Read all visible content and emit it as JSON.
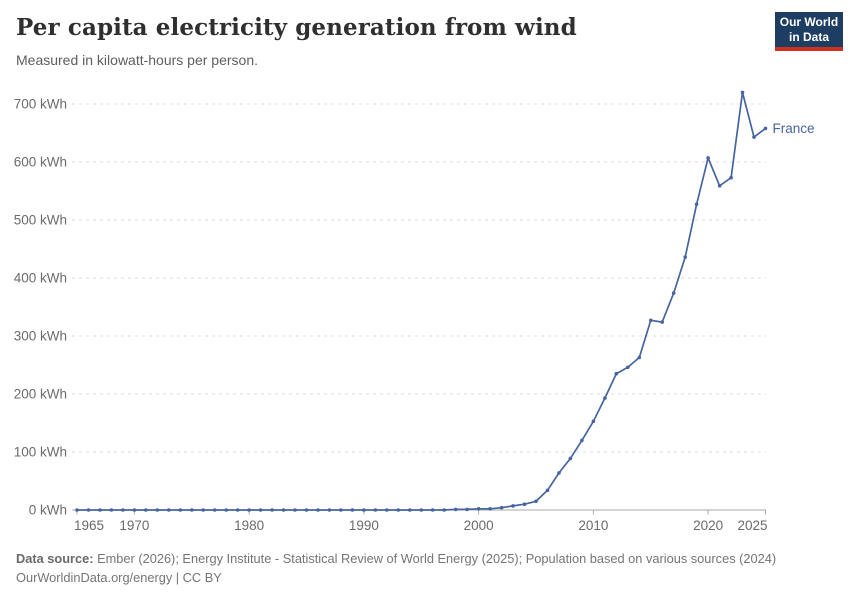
{
  "header": {
    "title": "Per capita electricity generation from wind",
    "subtitle": "Measured in kilowatt-hours per person.",
    "logo_line1": "Our World",
    "logo_line2": "in Data"
  },
  "footer": {
    "source_bold": "Data source:",
    "source_rest": " Ember (2026); Energy Institute - Statistical Review of World Energy (2025); Population based on various sources (2024)",
    "license": "OurWorldinData.org/energy | CC BY"
  },
  "colors": {
    "line": "#4664A0",
    "grid": "#dcdcdc",
    "axis": "#a8a8a8",
    "tick_label": "#6b6b6b",
    "logo_bg": "#1d3d63",
    "logo_red": "#cf3121"
  },
  "chart_data": {
    "type": "line",
    "title": "Per capita electricity generation from wind",
    "subtitle": "Measured in kilowatt-hours per person.",
    "xlabel": "",
    "ylabel": "kWh per person",
    "xlim": [
      1965,
      2025
    ],
    "ylim": [
      0,
      700
    ],
    "grid": "horizontal-dashed",
    "legend": "end-of-line-label",
    "xticks": [
      1965,
      1970,
      1980,
      1990,
      2000,
      2010,
      2020,
      2025
    ],
    "yticks": [
      0,
      100,
      200,
      300,
      400,
      500,
      600,
      700
    ],
    "ytick_suffix": " kWh",
    "x": [
      1965,
      1966,
      1967,
      1968,
      1969,
      1970,
      1971,
      1972,
      1973,
      1974,
      1975,
      1976,
      1977,
      1978,
      1979,
      1980,
      1981,
      1982,
      1983,
      1984,
      1985,
      1986,
      1987,
      1988,
      1989,
      1990,
      1991,
      1992,
      1993,
      1994,
      1995,
      1996,
      1997,
      1998,
      1999,
      2000,
      2001,
      2002,
      2003,
      2004,
      2005,
      2006,
      2007,
      2008,
      2009,
      2010,
      2011,
      2012,
      2013,
      2014,
      2015,
      2016,
      2017,
      2018,
      2019,
      2020,
      2021,
      2022,
      2023,
      2024,
      2025
    ],
    "series": [
      {
        "name": "France",
        "color": "#4664A0",
        "values": [
          0,
          0,
          0,
          0,
          0,
          0,
          0,
          0,
          0,
          0,
          0,
          0,
          0,
          0,
          0,
          0,
          0,
          0,
          0,
          0,
          0,
          0,
          0,
          0,
          0,
          0,
          0,
          0,
          0,
          0,
          0,
          0,
          0,
          1,
          1,
          2,
          2,
          4,
          7,
          10,
          15,
          34,
          64,
          89,
          120,
          153,
          193,
          235,
          246,
          263,
          327,
          324,
          374,
          436,
          527,
          607,
          559,
          573,
          720,
          643,
          658
        ]
      }
    ]
  }
}
